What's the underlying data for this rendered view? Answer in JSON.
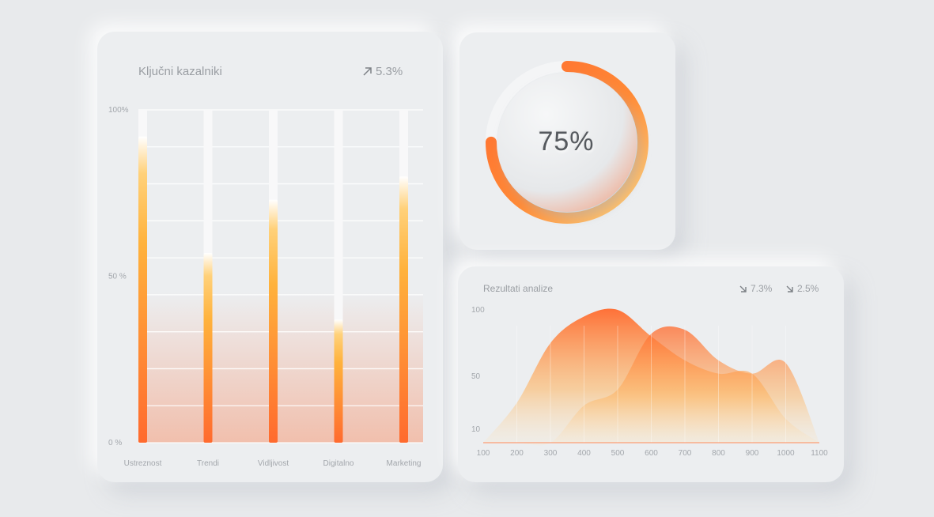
{
  "kpi_card": {
    "title": "Ključni kazalniki",
    "trend": {
      "direction": "up",
      "value": "5.3%"
    }
  },
  "donut_card": {
    "percent_label": "75%"
  },
  "analysis_card": {
    "title": "Rezultati analize",
    "trends": [
      {
        "direction": "down",
        "value": "7.3%"
      },
      {
        "direction": "down",
        "value": "2.5%"
      }
    ]
  },
  "colors": {
    "accent_orange": "#ff6a2e",
    "accent_yellow": "#ffb23c",
    "background": "#e8eaec"
  },
  "icons": {
    "trend_up": "arrow-up-right-icon",
    "trend_down": "arrow-down-right-icon"
  },
  "chart_data": [
    {
      "type": "bar",
      "categories": [
        "Ustreznost",
        "Trendi",
        "Vidljivost",
        "Digitalno",
        "Marketing"
      ],
      "values": [
        92,
        57,
        73,
        37,
        80
      ],
      "ylim": [
        0,
        100
      ],
      "yticks": [
        "100%",
        "50 %",
        "0 %"
      ],
      "grid": true
    },
    {
      "type": "pie",
      "values": [
        75,
        25
      ],
      "label": "75%"
    },
    {
      "type": "area",
      "x": [
        100,
        200,
        300,
        400,
        500,
        600,
        700,
        800,
        900,
        1000,
        1100
      ],
      "xticks": [
        "100",
        "200",
        "300",
        "400",
        "500",
        "600",
        "700",
        "800",
        "900",
        "1000",
        "1100"
      ],
      "yticks": [
        "100",
        "50",
        "10"
      ],
      "xlim": [
        100,
        1100
      ],
      "ylim": [
        0,
        100
      ],
      "series": [
        {
          "values": [
            0,
            30,
            75,
            95,
            100,
            80,
            62,
            52,
            52,
            18,
            0
          ]
        },
        {
          "values": [
            0,
            0,
            0,
            28,
            40,
            82,
            85,
            62,
            52,
            60,
            0
          ]
        }
      ]
    }
  ]
}
